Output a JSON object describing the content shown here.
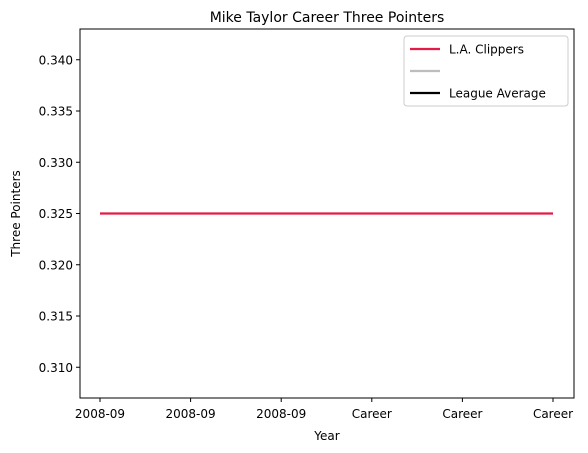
{
  "chart_data": {
    "type": "line",
    "title": "Mike Taylor  Career Three Pointers",
    "xlabel": "Year",
    "ylabel": "Three Pointers",
    "x_categories": [
      "2008-09",
      "2008-09",
      "2008-09",
      "Career",
      "Career",
      "Career"
    ],
    "ylim": [
      0.307,
      0.343
    ],
    "y_ticks": [
      0.31,
      0.315,
      0.32,
      0.325,
      0.33,
      0.335,
      0.34
    ],
    "y_tick_labels": [
      "0.310",
      "0.315",
      "0.320",
      "0.325",
      "0.330",
      "0.335",
      "0.340"
    ],
    "grid": false,
    "legend_position": "top-right",
    "series": [
      {
        "name": "L.A. Clippers",
        "color": "#e31c47",
        "values": [
          0.325,
          0.325,
          0.325,
          0.325,
          0.325,
          0.325
        ]
      },
      {
        "name": "",
        "color": "#bdbdbd",
        "values": []
      },
      {
        "name": "League Average",
        "color": "#000000",
        "values": []
      }
    ]
  }
}
